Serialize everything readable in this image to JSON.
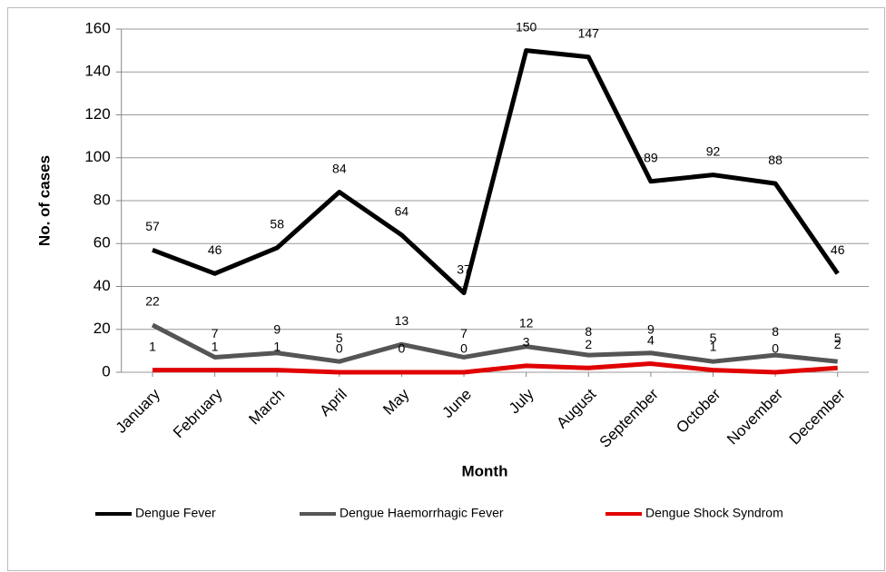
{
  "chart_data": {
    "type": "line",
    "x_label": "Month",
    "y_label": "No. of cases",
    "categories": [
      "January",
      "February",
      "March",
      "April",
      "May",
      "June",
      "July",
      "August",
      "September",
      "October",
      "November",
      "December"
    ],
    "series": [
      {
        "name": "Dengue Fever",
        "color": "#000000",
        "values": [
          57,
          46,
          58,
          84,
          64,
          37,
          150,
          147,
          89,
          92,
          88,
          46
        ]
      },
      {
        "name": "Dengue Haemorrhagic Fever",
        "color": "#555555",
        "values": [
          22,
          7,
          9,
          5,
          13,
          7,
          12,
          8,
          9,
          5,
          8,
          5
        ]
      },
      {
        "name": "Dengue Shock Syndrom",
        "color": "#e00000",
        "values": [
          1,
          1,
          1,
          0,
          0,
          0,
          3,
          2,
          4,
          1,
          0,
          2
        ]
      }
    ],
    "ylim": [
      0,
      160
    ],
    "yticks": [
      0,
      20,
      40,
      60,
      80,
      100,
      120,
      140,
      160
    ],
    "grid": true,
    "legend": "bottom"
  }
}
